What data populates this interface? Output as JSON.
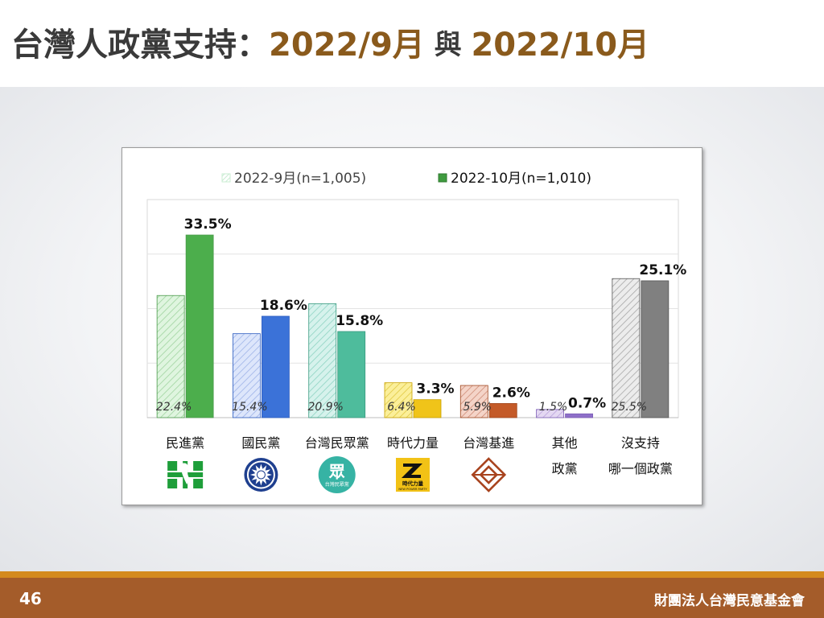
{
  "slide": {
    "title_prefix": "台灣人政黨支持：",
    "title_period1": "2022/9月",
    "title_join": " 與 ",
    "title_period2": "2022/10月",
    "page_number": "46",
    "organization": "財團法人台灣民意基金會"
  },
  "chart_data": {
    "type": "bar",
    "ylim": [
      0,
      40
    ],
    "grid": true,
    "legend_position": "top",
    "categories": [
      [
        "民進黨"
      ],
      [
        "國民黨"
      ],
      [
        "台灣民眾黨"
      ],
      [
        "時代力量"
      ],
      [
        "台灣基進"
      ],
      [
        "其他",
        "政黨"
      ],
      [
        "沒支持",
        "哪一個政黨"
      ]
    ],
    "series": [
      {
        "name": "2022-9月(n=1,005)",
        "style": "hatched-light",
        "values": [
          22.4,
          15.4,
          20.9,
          6.4,
          5.9,
          1.5,
          25.5
        ],
        "labels": [
          "22.4%",
          "15.4%",
          "20.9%",
          "6.4%",
          "5.9%",
          "1.5%",
          "25.5%"
        ]
      },
      {
        "name": "2022-10月(n=1,010)",
        "style": "solid",
        "values": [
          33.5,
          18.6,
          15.8,
          3.3,
          2.6,
          0.7,
          25.1
        ],
        "labels": [
          "33.5%",
          "18.6%",
          "15.8%",
          "3.3%",
          "2.6%",
          "0.7%",
          "25.1%"
        ]
      }
    ],
    "colors": {
      "light": [
        "#dff5df",
        "#dde6fb",
        "#d6f2ec",
        "#fbef9a",
        "#f4d4c8",
        "#e4d8f2",
        "#ececec"
      ],
      "hatch": [
        "#9fd49f",
        "#9db3e8",
        "#8fd4c4",
        "#e0c840",
        "#cf8d78",
        "#b9a3dc",
        "#a8a8a8"
      ],
      "solid": [
        "#4cae4c",
        "#3b72d8",
        "#4ebc9c",
        "#f0c419",
        "#c45a28",
        "#8e6fc9",
        "#808080"
      ],
      "outline": [
        "#4a9a4a",
        "#2c5cc0",
        "#3a9a80",
        "#c9a100",
        "#a04820",
        "#7a5cb5",
        "#555555"
      ],
      "legend_light": "#c9ecd2",
      "legend_solid": "#3f9b3f"
    },
    "logos": [
      {
        "icon": "dpp-logo-icon"
      },
      {
        "icon": "kmt-logo-icon"
      },
      {
        "icon": "tpp-logo-icon",
        "char": "眾",
        "text": "台灣民眾黨"
      },
      {
        "icon": "npp-logo-icon",
        "text": "時代力量",
        "subtext": "NEW POWER PARTY"
      },
      {
        "icon": "tsp-logo-icon"
      }
    ]
  }
}
